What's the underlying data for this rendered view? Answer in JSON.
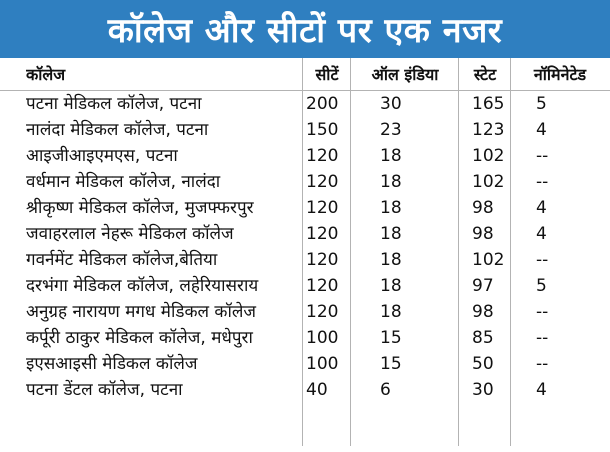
{
  "title": "कॉलेज और सीटों पर एक नजर",
  "colors": {
    "banner": "#2f7fc0",
    "title_text": "#ffffff",
    "grid_lines": "#b3b3b3"
  },
  "table": {
    "headers": {
      "college": "कॉलेज",
      "seats": "सीटें",
      "all_india": "ऑल इंडिया",
      "state": "स्टेट",
      "nominated": "नॉमिनेटेड"
    },
    "rows": [
      {
        "college": "पटना मेडिकल कॉलेज, पटना",
        "seats": "200",
        "all_india": "30",
        "state": "165",
        "nominated": "5"
      },
      {
        "college": "नालंदा मेडिकल कॉलेज, पटना",
        "seats": "150",
        "all_india": "23",
        "state": "123",
        "nominated": "4"
      },
      {
        "college": "आइजीआइएमएस, पटना",
        "seats": "120",
        "all_india": "18",
        "state": "102",
        "nominated": "--"
      },
      {
        "college": "वर्धमान मेडिकल कॉलेज, नालंदा",
        "seats": "120",
        "all_india": "18",
        "state": "102",
        "nominated": "--"
      },
      {
        "college": "श्रीकृष्ण मेडिकल कॉलेज, मुजफ्फरपुर",
        "seats": "120",
        "all_india": "18",
        "state": "98",
        "nominated": "4"
      },
      {
        "college": "जवाहरलाल नेहरू मेडिकल कॉलेज",
        "seats": "120",
        "all_india": "18",
        "state": "98",
        "nominated": "4"
      },
      {
        "college": "गवर्नमेंट मेडिकल कॉलेज,बेतिया",
        "seats": "120",
        "all_india": "18",
        "state": "102",
        "nominated": "--"
      },
      {
        "college": "दरभंगा मेडिकल कॉलेज, लहेरियासराय",
        "seats": "120",
        "all_india": "18",
        "state": "97",
        "nominated": "5"
      },
      {
        "college": "अनुग्रह नारायण मगध मेडिकल कॉलेज",
        "seats": "120",
        "all_india": "18",
        "state": "98",
        "nominated": "--"
      },
      {
        "college": "कर्पूरी ठाकुर मेडिकल कॉलेज, मधेपुरा",
        "seats": "100",
        "all_india": "15",
        "state": "85",
        "nominated": "--"
      },
      {
        "college": "इएसआइसी मेडिकल कॉलेज",
        "seats": "100",
        "all_india": "15",
        "state": "50",
        "nominated": "--"
      },
      {
        "college": "पटना डेंटल कॉलेज, पटना",
        "seats": "40",
        "all_india": "6",
        "state": "30",
        "nominated": "4"
      }
    ]
  }
}
